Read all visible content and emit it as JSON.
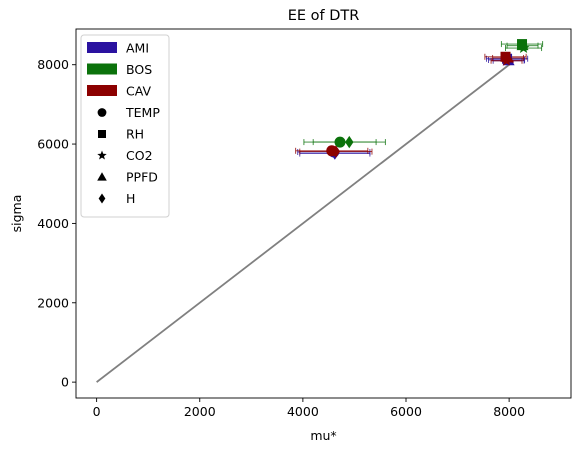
{
  "chart_data": {
    "type": "scatter",
    "title": "EE of DTR",
    "xlabel": "mu*",
    "ylabel": "sigma",
    "xlim": [
      -400,
      9200
    ],
    "ylim": [
      -400,
      8900
    ],
    "xticks": [
      0,
      2000,
      4000,
      6000,
      8000
    ],
    "yticks": [
      0,
      2000,
      4000,
      6000,
      8000
    ],
    "grid": false,
    "legend_position": "top-left",
    "reference_line": {
      "x": [
        0,
        8000
      ],
      "y": [
        0,
        8000
      ],
      "color": "#808080"
    },
    "groups": [
      {
        "name": "AMI",
        "color": "#2a12a0"
      },
      {
        "name": "BOS",
        "color": "#0b720b"
      },
      {
        "name": "CAV",
        "color": "#8c0000"
      }
    ],
    "markers": [
      {
        "name": "TEMP",
        "shape": "circle"
      },
      {
        "name": "RH",
        "shape": "square"
      },
      {
        "name": "CO2",
        "shape": "star"
      },
      {
        "name": "PPFD",
        "shape": "triangle"
      },
      {
        "name": "H",
        "shape": "diamond"
      }
    ],
    "points": [
      {
        "group": "AMI",
        "marker": "TEMP",
        "x": 4600,
        "y": 5800,
        "xerr": 700
      },
      {
        "group": "AMI",
        "marker": "H",
        "x": 4620,
        "y": 5760,
        "xerr": 680
      },
      {
        "group": "AMI",
        "marker": "RH",
        "x": 7960,
        "y": 8150,
        "xerr": 400
      },
      {
        "group": "AMI",
        "marker": "CO2",
        "x": 7950,
        "y": 8120,
        "xerr": 350
      },
      {
        "group": "AMI",
        "marker": "PPFD",
        "x": 7990,
        "y": 8100,
        "xerr": 300
      },
      {
        "group": "BOS",
        "marker": "TEMP",
        "x": 4720,
        "y": 6050,
        "xerr": 700
      },
      {
        "group": "BOS",
        "marker": "H",
        "x": 4900,
        "y": 6050,
        "xerr": 700
      },
      {
        "group": "BOS",
        "marker": "RH",
        "x": 8250,
        "y": 8520,
        "xerr": 400
      },
      {
        "group": "BOS",
        "marker": "CO2",
        "x": 8280,
        "y": 8420,
        "xerr": 350
      },
      {
        "group": "BOS",
        "marker": "PPFD",
        "x": 8260,
        "y": 8480,
        "xerr": 300
      },
      {
        "group": "CAV",
        "marker": "TEMP",
        "x": 4560,
        "y": 5830,
        "xerr": 700
      },
      {
        "group": "CAV",
        "marker": "H",
        "x": 4640,
        "y": 5810,
        "xerr": 700
      },
      {
        "group": "CAV",
        "marker": "RH",
        "x": 7930,
        "y": 8200,
        "xerr": 400
      },
      {
        "group": "CAV",
        "marker": "CO2",
        "x": 7950,
        "y": 8100,
        "xerr": 300
      },
      {
        "group": "CAV",
        "marker": "PPFD",
        "x": 7980,
        "y": 8170,
        "xerr": 300
      }
    ]
  }
}
